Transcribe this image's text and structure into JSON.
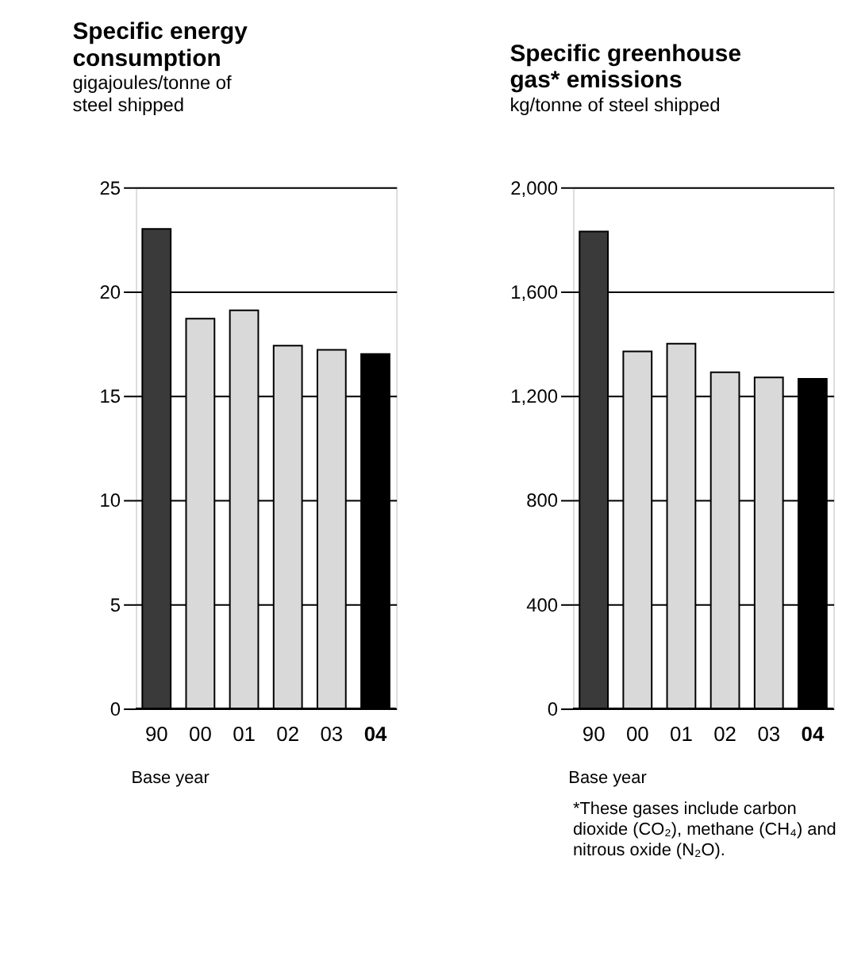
{
  "chart_data": [
    {
      "type": "bar",
      "title": "Specific energy\nconsumption",
      "subtitle": "gigajoules/tonne of\nsteel shipped",
      "categories": [
        "90",
        "00",
        "01",
        "02",
        "03",
        "04"
      ],
      "values": [
        23,
        18.7,
        19.1,
        17.4,
        17.2,
        17.0
      ],
      "colors": [
        "#3a3a3a",
        "#d9d9d9",
        "#d9d9d9",
        "#d9d9d9",
        "#d9d9d9",
        "#000000"
      ],
      "ylim": [
        0,
        25
      ],
      "yticks": [
        0,
        5,
        10,
        15,
        20,
        25
      ],
      "grid": "y",
      "annotations": [
        "Base year"
      ]
    },
    {
      "type": "bar",
      "title": "Specific greenhouse\ngas* emissions",
      "subtitle": "kg/tonne of steel shipped",
      "categories": [
        "90",
        "00",
        "01",
        "02",
        "03",
        "04"
      ],
      "values": [
        1830,
        1370,
        1400,
        1290,
        1270,
        1265
      ],
      "colors": [
        "#3a3a3a",
        "#d9d9d9",
        "#d9d9d9",
        "#d9d9d9",
        "#d9d9d9",
        "#000000"
      ],
      "ylim": [
        0,
        2000
      ],
      "yticks": [
        0,
        400,
        800,
        {
          "value": 1200,
          "label": "1,200"
        },
        {
          "value": 1600,
          "label": "1,600"
        },
        {
          "value": 2000,
          "label": "2,000"
        }
      ],
      "grid": "y",
      "annotations": [
        "Base year",
        "*These gases include carbon\ndioxide (CO₂), methane (CH₄) and\nnitrous oxide (N₂O)."
      ]
    }
  ]
}
